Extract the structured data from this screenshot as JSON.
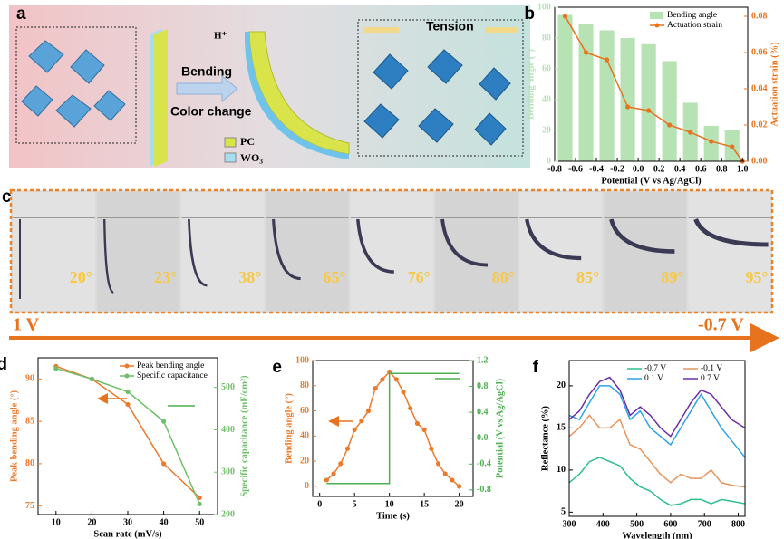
{
  "diagram_a": {
    "panel": "a",
    "ion": "H⁺",
    "tension": "Tension",
    "bending": "Bending",
    "color_change": "Color change",
    "pc": "PC",
    "wo3": "WO₃"
  },
  "photos_c": {
    "panel": "c",
    "angles": [
      "20°",
      "23°",
      "38°",
      "65°",
      "76°",
      "80°",
      "85°",
      "89°",
      "95°"
    ],
    "start": "1 V",
    "end": "-0.7 V"
  },
  "chart_data": [
    {
      "type": "bar-line",
      "panel": "b",
      "xlabel": "Potential (V vs Ag/AgCl)",
      "ylabel": "Bending angle (°)",
      "y2label": "Actuation strain (%)",
      "xlim": [
        -0.8,
        1.05
      ],
      "xticks": [
        -0.8,
        -0.6,
        -0.4,
        -0.2,
        {
          "value": 0,
          "label": "0.0"
        },
        0.2,
        0.4,
        0.6,
        0.8,
        {
          "value": 1,
          "label": "1.0"
        }
      ],
      "ylim": [
        0,
        100
      ],
      "yticks": [
        0,
        20,
        40,
        60,
        80,
        100
      ],
      "y2lim": [
        0,
        0.085
      ],
      "y2ticks": [
        {
          "value": 0,
          "label": "0.00"
        },
        0.02,
        0.04,
        0.06,
        0.08
      ],
      "legend": "upper right",
      "series": [
        {
          "name": "Bending angle",
          "kind": "bar",
          "color": "#b6e2b4",
          "x": [
            -0.7,
            -0.5,
            -0.3,
            -0.1,
            0.1,
            0.3,
            0.5,
            0.7,
            0.9
          ],
          "values": [
            95,
            89,
            85,
            80,
            76,
            65,
            38,
            23,
            20
          ]
        },
        {
          "name": "Actuation strain",
          "kind": "line",
          "marker": "circle",
          "axis": "y2",
          "color": "#e8731e",
          "x": [
            -0.7,
            -0.5,
            -0.3,
            -0.1,
            0.1,
            0.3,
            0.5,
            0.7,
            0.9,
            1.0
          ],
          "values": [
            0.08,
            0.06,
            0.056,
            0.03,
            0.028,
            0.02,
            0.016,
            0.011,
            0.008,
            0
          ]
        }
      ]
    },
    {
      "type": "line",
      "panel": "d",
      "xlabel": "Scan rate (mV/s)",
      "ylabel": "Peak bending angle (°)",
      "y2label": "Specific capacitance (mF/cm²)",
      "xlim": [
        5,
        55
      ],
      "xticks": [
        10,
        20,
        30,
        40,
        50
      ],
      "ylim": [
        74,
        92.5
      ],
      "yticks": [
        75,
        80,
        85,
        90
      ],
      "y2lim": [
        200,
        570
      ],
      "y2ticks": [
        200,
        300,
        400,
        500
      ],
      "legend": "upper right",
      "series": [
        {
          "name": "Peak bending angle",
          "kind": "line",
          "marker": "circle",
          "color": "#ea7a2c",
          "x": [
            10,
            20,
            30,
            40,
            50
          ],
          "values": [
            91.5,
            90,
            87,
            80,
            76
          ]
        },
        {
          "name": "Specific capacitance",
          "kind": "line",
          "marker": "circle",
          "axis": "y2",
          "color": "#6fbf6a",
          "x": [
            10,
            20,
            30,
            40,
            50
          ],
          "values": [
            545,
            520,
            490,
            420,
            225
          ]
        }
      ]
    },
    {
      "type": "line",
      "panel": "e",
      "xlabel": "Time (s)",
      "ylabel": "Bending angle (°)",
      "y2label": "Potential (V vs Ag/AgCl)",
      "xlim": [
        -1,
        22
      ],
      "xticks": [
        0,
        5,
        10,
        15,
        20
      ],
      "ylim": [
        -8,
        100
      ],
      "yticks": [
        0,
        20,
        40,
        60,
        80,
        100
      ],
      "y2lim": [
        -0.9,
        1.2
      ],
      "y2ticks": [
        -0.8,
        -0.4,
        {
          "value": 0,
          "label": "0.0"
        },
        0.4,
        0.8,
        1.2
      ],
      "series": [
        {
          "kind": "line",
          "marker": "circle",
          "color": "#ea7a2c",
          "x": [
            1,
            2,
            3,
            4,
            5,
            6,
            7,
            8,
            9,
            10,
            11,
            12,
            13,
            14,
            15,
            16,
            17,
            18,
            19,
            20
          ],
          "values": [
            5,
            10,
            18,
            30,
            45,
            52,
            60,
            78,
            85,
            91,
            85,
            75,
            62,
            50,
            45,
            30,
            18,
            10,
            5,
            0
          ]
        },
        {
          "kind": "line",
          "marker": "none",
          "axis": "y2",
          "color": "#4caf50",
          "x": [
            1,
            10,
            10,
            20
          ],
          "values": [
            -0.7,
            -0.7,
            1.0,
            1.0
          ]
        }
      ]
    },
    {
      "type": "line",
      "panel": "f",
      "xlabel": "Wavelength (nm)",
      "ylabel": "Reflectance (%)",
      "xlim": [
        300,
        820
      ],
      "xticks": [
        300,
        400,
        500,
        600,
        700,
        800
      ],
      "ylim": [
        4.5,
        23
      ],
      "yticks": [
        5,
        10,
        15,
        20
      ],
      "legend": "upper right",
      "series": [
        {
          "name": "-0.7 V",
          "kind": "line",
          "marker": "none",
          "color": "#2dbd8e",
          "x": [
            300,
            330,
            360,
            390,
            420,
            450,
            480,
            510,
            540,
            570,
            600,
            630,
            660,
            690,
            720,
            750,
            780,
            820
          ],
          "values": [
            8.5,
            9.5,
            11,
            11.5,
            11,
            10.5,
            9,
            8,
            7.5,
            6.5,
            5.8,
            6,
            6.5,
            6.5,
            6,
            6.5,
            6.3,
            6
          ]
        },
        {
          "name": "-0.1 V",
          "kind": "line",
          "marker": "none",
          "color": "#e8935a",
          "x": [
            300,
            330,
            360,
            390,
            420,
            450,
            480,
            510,
            540,
            570,
            600,
            630,
            660,
            690,
            720,
            750,
            780,
            820
          ],
          "values": [
            14,
            15,
            16.5,
            15,
            15,
            16,
            13,
            12.5,
            11,
            9.5,
            8.5,
            9.5,
            9,
            9,
            10,
            8.5,
            8.2,
            8
          ]
        },
        {
          "name": "0.1 V",
          "kind": "line",
          "marker": "none",
          "color": "#2ea4e6",
          "x": [
            300,
            330,
            360,
            390,
            420,
            450,
            480,
            510,
            540,
            570,
            600,
            630,
            660,
            690,
            720,
            750,
            780,
            820
          ],
          "values": [
            16.5,
            16,
            18,
            20,
            20,
            19,
            16,
            17,
            15,
            14,
            13,
            15,
            17,
            19,
            17,
            15,
            13.5,
            11.5
          ]
        },
        {
          "name": "0.7 V",
          "kind": "line",
          "marker": "none",
          "color": "#6a2fa5",
          "x": [
            300,
            330,
            360,
            390,
            420,
            450,
            480,
            510,
            540,
            570,
            600,
            630,
            660,
            690,
            720,
            750,
            780,
            820
          ],
          "values": [
            16,
            17,
            19,
            20.5,
            21,
            19.5,
            16.5,
            17.5,
            16.5,
            15,
            14,
            16,
            18,
            19.5,
            19,
            17.5,
            16,
            15
          ]
        }
      ]
    }
  ]
}
